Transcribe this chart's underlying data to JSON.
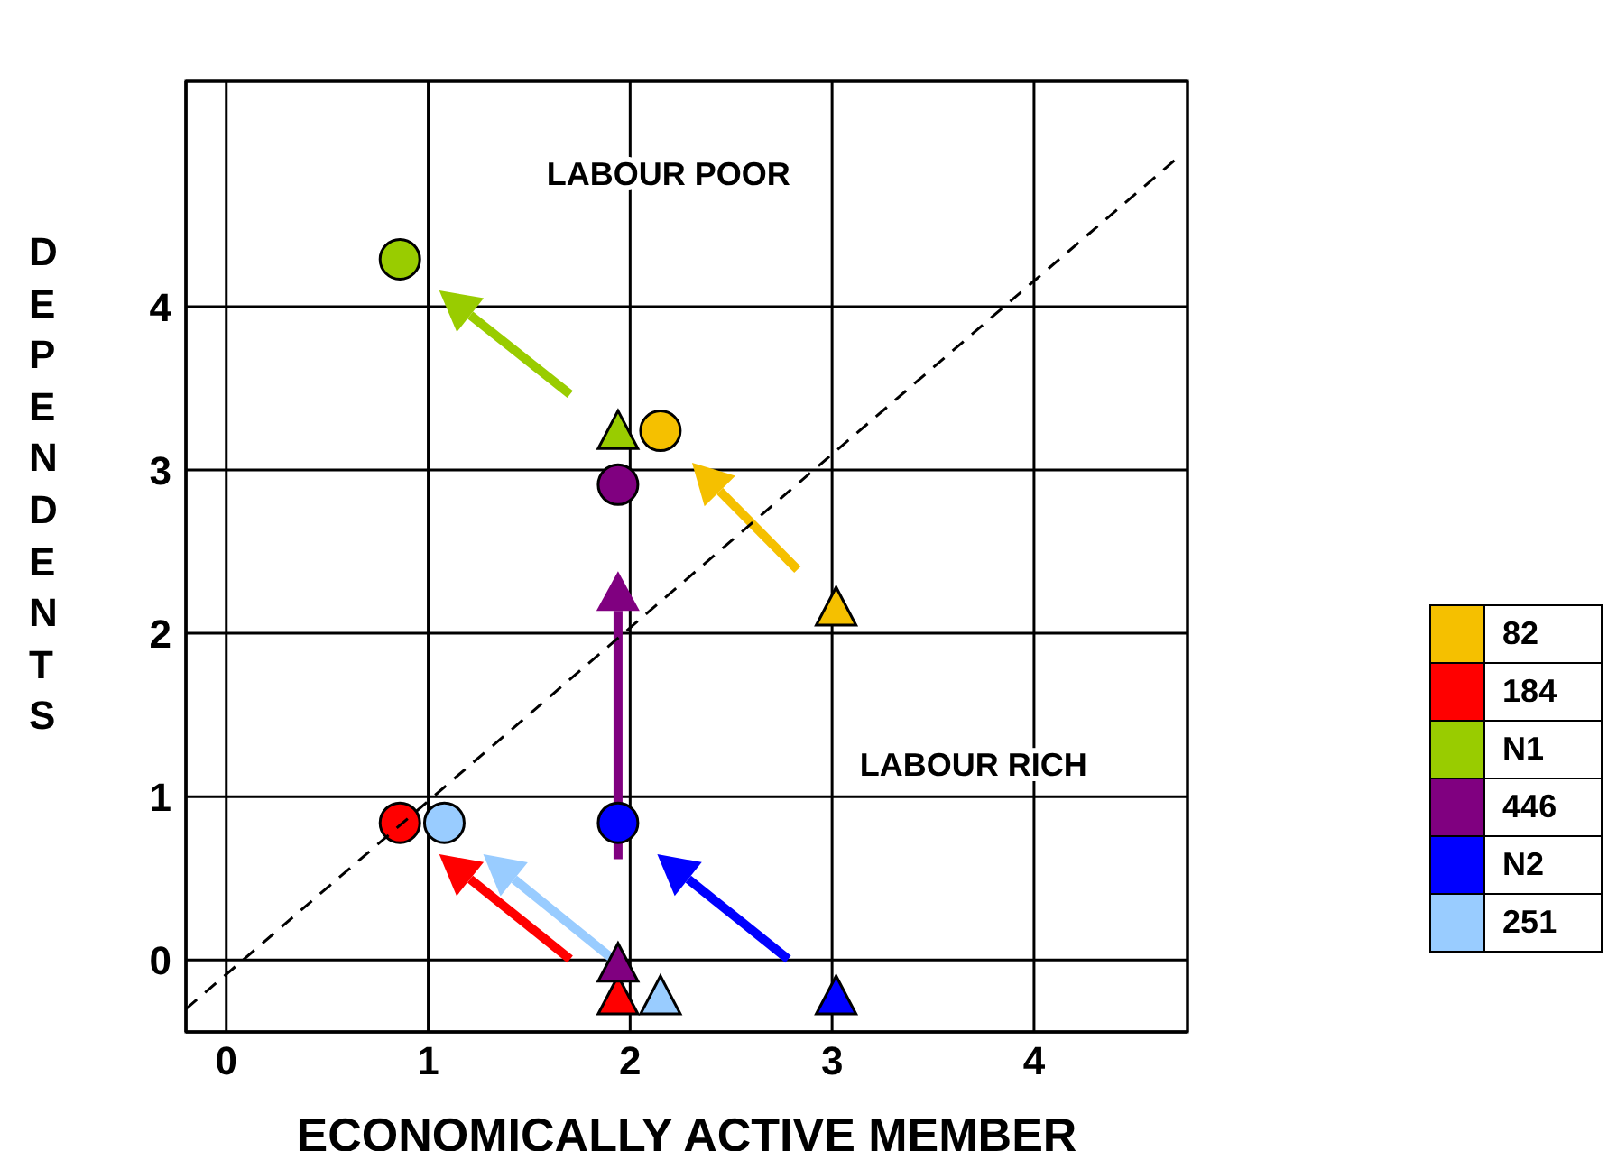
{
  "chart_data": {
    "type": "scatter",
    "xlabel": "ECONOMICALLY ACTIVE MEMBER",
    "ylabel": "DEPENDENTS",
    "annotations": [
      "LABOUR POOR",
      "LABOUR RICH"
    ],
    "xlim": [
      -0.2,
      4.76
    ],
    "xticks": [
      0,
      1,
      2,
      3,
      4
    ],
    "ylim": [
      -0.44,
      5.38
    ],
    "yticks": [
      0,
      1,
      2,
      3,
      4
    ],
    "grid": true,
    "legend": "right",
    "series": [
      {
        "color": "#f5c000",
        "marker": "triangle",
        "x": [
          3.02
        ],
        "values": [
          2.15
        ]
      },
      {
        "color": "#ff0000",
        "marker": "triangle",
        "x": [
          1.94
        ],
        "values": [
          -0.23
        ]
      },
      {
        "color": "#99cc00",
        "marker": "triangle",
        "x": [
          1.94
        ],
        "values": [
          3.23
        ]
      },
      {
        "color": "#800080",
        "marker": "triangle",
        "x": [
          1.94
        ],
        "values": [
          -0.03
        ]
      },
      {
        "color": "#0000ff",
        "marker": "triangle",
        "x": [
          3.02
        ],
        "values": [
          -0.23
        ]
      },
      {
        "color": "#99ccff",
        "marker": "triangle",
        "x": [
          2.15
        ],
        "values": [
          -0.23
        ]
      },
      {
        "name": "82",
        "color": "#f5c000",
        "marker": "circle",
        "x": [
          2.15
        ],
        "values": [
          3.24
        ]
      },
      {
        "name": "184",
        "color": "#ff0000",
        "marker": "circle",
        "x": [
          0.86
        ],
        "values": [
          0.84
        ]
      },
      {
        "name": "N1",
        "color": "#99cc00",
        "marker": "circle",
        "x": [
          0.86
        ],
        "values": [
          4.29
        ]
      },
      {
        "name": "446",
        "color": "#800080",
        "marker": "circle",
        "x": [
          1.94
        ],
        "values": [
          2.91
        ]
      },
      {
        "name": "N2",
        "color": "#0000ff",
        "marker": "circle",
        "x": [
          1.94
        ],
        "values": [
          0.84
        ]
      },
      {
        "name": "251",
        "color": "#99ccff",
        "marker": "circle",
        "x": [
          1.08
        ],
        "values": [
          0.84
        ]
      },
      {
        "type": "line",
        "color": "#000000",
        "line_style": "dashed",
        "marker": "none",
        "x": [
          -0.2,
          4.7
        ],
        "values": [
          -0.3,
          4.9
        ]
      }
    ]
  }
}
